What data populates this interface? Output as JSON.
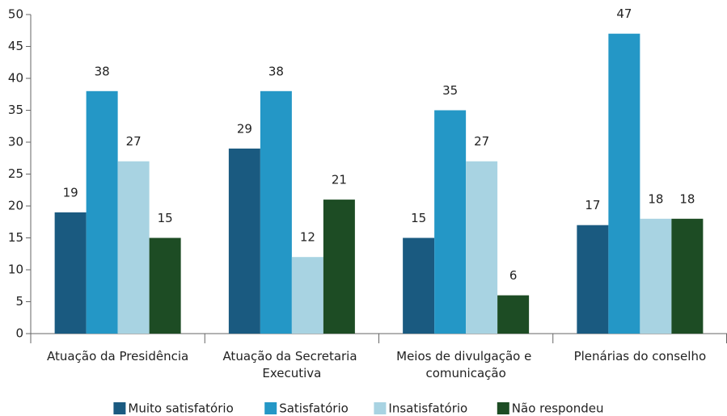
{
  "chart_data": {
    "type": "bar",
    "categories": [
      "Atuação da Presidência",
      "Atuação da Secretaria Executiva",
      "Meios de divulgação e comunicação",
      "Plenárias do conselho"
    ],
    "series": [
      {
        "name": "Muito satisfatório",
        "color": "#1a5a80",
        "values": [
          19,
          29,
          15,
          17
        ]
      },
      {
        "name": "Satisfatório",
        "color": "#2497c6",
        "values": [
          38,
          38,
          35,
          47
        ]
      },
      {
        "name": "Insatisfatório",
        "color": "#a8d3e2",
        "values": [
          27,
          12,
          27,
          18
        ]
      },
      {
        "name": "Não respondeu",
        "color": "#1d4c24",
        "values": [
          15,
          21,
          6,
          18
        ]
      }
    ],
    "ylim": [
      0,
      50
    ],
    "yticks": [
      0,
      5,
      10,
      15,
      20,
      25,
      30,
      35,
      40,
      45,
      50
    ],
    "legend": "bottom"
  }
}
